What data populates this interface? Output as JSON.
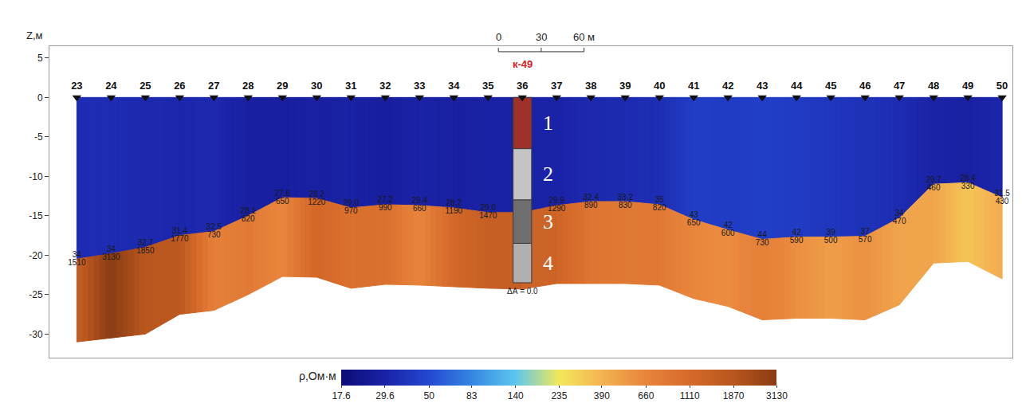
{
  "chart_data": {
    "type": "geoelectric_section",
    "y_label": "Z,м",
    "xlim": [
      22.2,
      50.3
    ],
    "ylim": [
      -33,
      6.5
    ],
    "yticks": [
      5,
      0,
      -5,
      -10,
      -15,
      -20,
      -25,
      -30
    ],
    "tick_labels": "y",
    "grid": false,
    "data_labels": true,
    "x": [
      23,
      24,
      25,
      26,
      27,
      28,
      29,
      30,
      31,
      32,
      33,
      34,
      35,
      36,
      37,
      38,
      39,
      40,
      41,
      42,
      43,
      44,
      45,
      46,
      47,
      48,
      49,
      50
    ],
    "boundary": [
      -20.5,
      -19.8,
      -19,
      -17.5,
      -17,
      -15,
      -12.7,
      -12.8,
      -14,
      -13.6,
      -13.7,
      -14,
      -14.6,
      -14.6,
      -13.7,
      -13.2,
      -13.2,
      -13.6,
      -15.5,
      -16.8,
      -18,
      -17.7,
      -17.7,
      -17.6,
      -15.3,
      -11,
      -10.8,
      -12.7
    ],
    "bottom": [
      -31,
      -30.5,
      -30,
      -27.5,
      -27,
      -25,
      -22.7,
      -22.8,
      -24.2,
      -23.7,
      -23.8,
      -24,
      -24.2,
      -24.3,
      -23.6,
      -23.6,
      -23.6,
      -23.8,
      -25.5,
      -26.5,
      -28.2,
      -28,
      -28,
      -28.2,
      -26.3,
      -21,
      -20.8,
      -23
    ],
    "upper_layer": {
      "values": [
        34,
        34,
        32.7,
        31.4,
        32.5,
        28.1,
        27.6,
        28.2,
        29.0,
        27.2,
        29.4,
        28.2,
        29.0,
        null,
        29.9,
        32.4,
        33.2,
        35,
        43,
        42,
        44,
        42,
        39,
        37,
        34,
        29.7,
        28.4,
        31.5
      ],
      "value_labels": [
        "34",
        "34",
        "32.7",
        "31.4",
        "32.5",
        "28.1",
        "27.6",
        "28.2",
        "29.0",
        "27.2",
        "29.4",
        "28.2",
        "29.0",
        null,
        "29.9",
        "32.4",
        "33.2",
        "35",
        "43",
        "42",
        "44",
        "42",
        "39",
        "37",
        "34",
        "29.7",
        "28.4",
        "31.5"
      ]
    },
    "lower_layer": {
      "values": [
        1510,
        3130,
        1850,
        1770,
        730,
        820,
        650,
        1220,
        970,
        990,
        660,
        1190,
        1470,
        null,
        1290,
        890,
        830,
        820,
        650,
        600,
        730,
        590,
        500,
        570,
        470,
        460,
        330,
        430
      ]
    },
    "scale_bar": {
      "y": 5.8,
      "ticks": [
        {
          "value": 35.3,
          "label": "0"
        },
        {
          "value": 36.55,
          "label": "30"
        },
        {
          "value": 37.8,
          "label": "60 м"
        }
      ]
    },
    "borehole": {
      "name": "к-49",
      "x": 36,
      "note": {
        "text": "ΔА = 0.0",
        "y": -24.6
      },
      "layers": [
        {
          "label": "1",
          "top": 0,
          "bottom": -6.5,
          "color": "#a0302a"
        },
        {
          "label": "2",
          "top": -6.5,
          "bottom": -13,
          "color": "#c4c4c4"
        },
        {
          "label": "3",
          "top": -13,
          "bottom": -18.5,
          "color": "#6e6e6e"
        },
        {
          "label": "4",
          "top": -18.5,
          "bottom": -23.5,
          "color": "#b0b0b0"
        }
      ]
    },
    "colorbar": {
      "title": "ρ,Ом·м",
      "range": [
        17.6,
        3130
      ],
      "ticks": [
        17.6,
        29.6,
        50,
        83,
        140,
        235,
        390,
        660,
        1110,
        1870,
        3130
      ],
      "colors": [
        "#0c0c78",
        "#1a22a6",
        "#2448d2",
        "#3486e2",
        "#5cc6ee",
        "#f2e85a",
        "#f4b452",
        "#e8843c",
        "#d66a2a",
        "#b8561e",
        "#8a3c14"
      ]
    }
  }
}
